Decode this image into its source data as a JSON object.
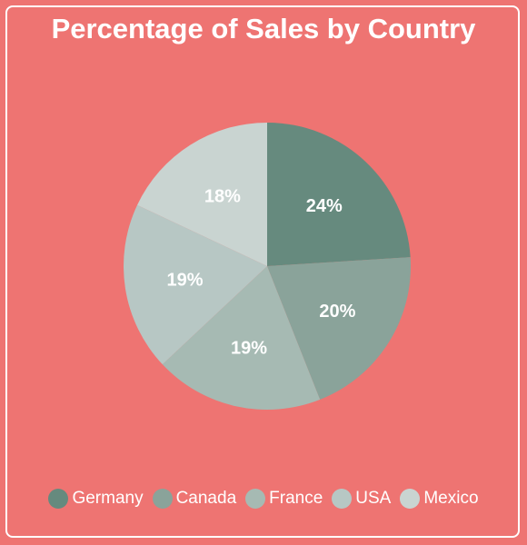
{
  "chart_data": {
    "type": "pie",
    "title": "Percentage of Sales by Country",
    "categories": [
      "Germany",
      "Canada",
      "France",
      "USA",
      "Mexico"
    ],
    "values": [
      24,
      20,
      19,
      19,
      18
    ],
    "data_labels": [
      "24%",
      "20%",
      "19%",
      "19%",
      "18%"
    ],
    "colors": [
      "#668A7E",
      "#8AA39A",
      "#A6BAB3",
      "#B7C7C4",
      "#C9D4D1"
    ],
    "legend_position": "bottom",
    "background_color": "#EE7472"
  }
}
